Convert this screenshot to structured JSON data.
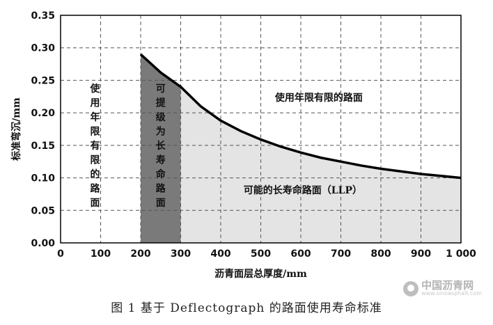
{
  "chart_data": {
    "type": "line",
    "xlabel": "沥青面层总厚度/mm",
    "ylabel": "标准弯沉/mm",
    "xlim": [
      0,
      1000
    ],
    "ylim": [
      0,
      0.35
    ],
    "xticks": [
      "0",
      "100",
      "200",
      "300",
      "400",
      "500",
      "600",
      "700",
      "800",
      "900",
      "1 000"
    ],
    "yticks": [
      "0.00",
      "0.05",
      "0.10",
      "0.15",
      "0.20",
      "0.25",
      "0.30",
      "0.35"
    ],
    "grid": true,
    "series": [
      {
        "x": [
          200,
          250,
          300,
          350,
          400,
          450,
          500,
          550,
          600,
          650,
          700,
          750,
          800,
          850,
          900,
          950,
          1000
        ],
        "y": [
          0.29,
          0.262,
          0.24,
          0.21,
          0.188,
          0.172,
          0.159,
          0.148,
          0.139,
          0.131,
          0.125,
          0.119,
          0.114,
          0.11,
          0.106,
          0.103,
          0.1
        ]
      }
    ],
    "regions": [
      {
        "label": "使用年限有限的路面",
        "x_range": [
          0,
          200
        ],
        "orientation": "vertical",
        "fill": "none"
      },
      {
        "label": "可提级为长寿命路面",
        "x_range": [
          200,
          300
        ],
        "orientation": "vertical",
        "fill": "#7a7a7a"
      },
      {
        "label": "使用年限有限的路面",
        "x_range": [
          300,
          1000
        ],
        "orientation": "horizontal",
        "position": "above-curve",
        "fill": "none"
      },
      {
        "label": "可能的长寿命路面（LLP）",
        "x_range": [
          300,
          1000
        ],
        "orientation": "horizontal",
        "position": "below-curve",
        "fill": "#e4e4e4"
      }
    ]
  },
  "caption": "图 1   基于 Deflectograph 的路面使用寿命标准",
  "watermark": {
    "name": "中国沥青网",
    "url": "www.sinoasphalt.com"
  },
  "colors": {
    "dark_region": "#7a7a7a",
    "light_region": "#e4e4e4",
    "curve": "#000000",
    "grid": "#555555"
  }
}
